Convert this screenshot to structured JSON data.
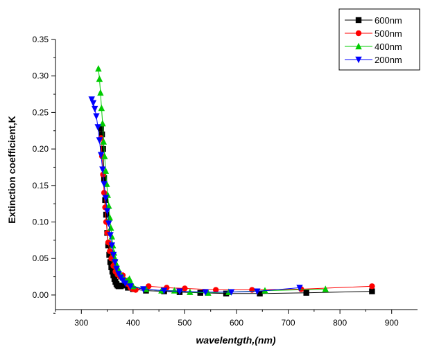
{
  "chart_data": {
    "type": "line",
    "xlabel": "wavelentgth,(nm)",
    "ylabel": "Extinction coefficient,K",
    "xlim": [
      250,
      950
    ],
    "ylim": [
      -0.02,
      0.35
    ],
    "x_ticks": [
      300,
      400,
      500,
      600,
      700,
      800,
      900
    ],
    "y_ticks": [
      0.0,
      0.05,
      0.1,
      0.15,
      0.2,
      0.25,
      0.3,
      0.35
    ],
    "x_tick_labels": [
      "300",
      "400",
      "500",
      "600",
      "700",
      "800",
      "900"
    ],
    "y_tick_labels": [
      "0.00",
      "0.05",
      "0.10",
      "0.15",
      "0.20",
      "0.25",
      "0.30",
      "0.35"
    ],
    "grid": false,
    "legend_position": "top-right",
    "series": [
      {
        "name": "600nm",
        "color": "#000000",
        "marker": "square",
        "x": [
          338,
          340,
          342,
          344,
          346,
          348,
          350,
          352,
          354,
          356,
          358,
          360,
          362,
          364,
          366,
          368,
          370,
          372,
          376,
          380,
          390,
          400,
          425,
          460,
          490,
          530,
          580,
          645,
          735,
          862
        ],
        "y": [
          0.228,
          0.22,
          0.2,
          0.16,
          0.13,
          0.11,
          0.085,
          0.068,
          0.055,
          0.045,
          0.038,
          0.032,
          0.027,
          0.022,
          0.018,
          0.015,
          0.013,
          0.012,
          0.012,
          0.013,
          0.01,
          0.008,
          0.006,
          0.005,
          0.004,
          0.003,
          0.002,
          0.002,
          0.003,
          0.005
        ]
      },
      {
        "name": "500nm",
        "color": "#ff0000",
        "marker": "circle",
        "x": [
          338,
          340,
          342,
          344,
          346,
          348,
          350,
          352,
          355,
          358,
          362,
          366,
          370,
          375,
          380,
          385,
          390,
          395,
          400,
          405,
          430,
          465,
          500,
          560,
          630,
          725,
          862
        ],
        "y": [
          0.215,
          0.19,
          0.165,
          0.14,
          0.12,
          0.1,
          0.085,
          0.072,
          0.06,
          0.05,
          0.04,
          0.032,
          0.028,
          0.025,
          0.027,
          0.02,
          0.015,
          0.01,
          0.008,
          0.007,
          0.012,
          0.01,
          0.009,
          0.007,
          0.007,
          0.008,
          0.012
        ]
      },
      {
        "name": "400nm",
        "color": "#00cc00",
        "marker": "triangle-up",
        "x": [
          333,
          335,
          337,
          339,
          341,
          343,
          345,
          347,
          349,
          351,
          353,
          355,
          357,
          359,
          361,
          363,
          365,
          368,
          371,
          375,
          380,
          385,
          390,
          393,
          395,
          400,
          425,
          455,
          480,
          510,
          545,
          585,
          655,
          772
        ],
        "y": [
          0.31,
          0.296,
          0.277,
          0.256,
          0.235,
          0.21,
          0.19,
          0.17,
          0.152,
          0.137,
          0.122,
          0.106,
          0.092,
          0.08,
          0.068,
          0.058,
          0.05,
          0.042,
          0.036,
          0.03,
          0.024,
          0.02,
          0.02,
          0.022,
          0.018,
          0.012,
          0.008,
          0.006,
          0.006,
          0.004,
          0.003,
          0.004,
          0.006,
          0.008
        ]
      },
      {
        "name": "200nm",
        "color": "#0000ff",
        "marker": "triangle-down",
        "x": [
          320,
          323,
          326,
          329,
          332,
          335,
          338,
          341,
          344,
          347,
          350,
          353,
          356,
          359,
          362,
          365,
          368,
          372,
          376,
          380,
          385,
          395,
          420,
          460,
          490,
          540,
          590,
          640,
          722
        ],
        "y": [
          0.268,
          0.263,
          0.255,
          0.245,
          0.23,
          0.212,
          0.192,
          0.172,
          0.152,
          0.133,
          0.115,
          0.098,
          0.082,
          0.068,
          0.055,
          0.045,
          0.036,
          0.029,
          0.024,
          0.02,
          0.016,
          0.012,
          0.008,
          0.006,
          0.005,
          0.004,
          0.004,
          0.005,
          0.01
        ]
      }
    ]
  }
}
